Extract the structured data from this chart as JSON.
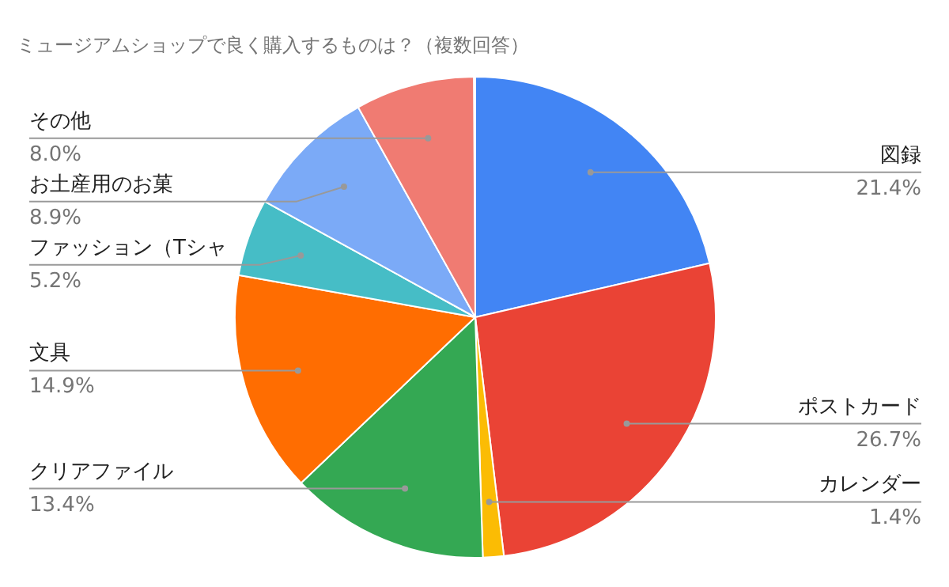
{
  "chart_data": {
    "type": "pie",
    "title": "ミュージアムショップで良く購入するものは？（複数回答）",
    "categories": [
      "図録",
      "ポストカード",
      "カレンダー",
      "クリアファイル",
      "文具",
      "ファッション（Tシャ",
      "お土産用のお菓",
      "その他"
    ],
    "values": [
      21.4,
      26.7,
      1.4,
      13.4,
      14.9,
      5.2,
      8.9,
      8.0
    ],
    "value_labels": [
      "21.4%",
      "26.7%",
      "1.4%",
      "13.4%",
      "14.9%",
      "5.2%",
      "8.9%",
      "8.0%"
    ],
    "colors": [
      "#4285f4",
      "#ea4335",
      "#fbbc04",
      "#34a853",
      "#ff6d01",
      "#46bdc6",
      "#7baaf7",
      "#f07b72"
    ]
  }
}
